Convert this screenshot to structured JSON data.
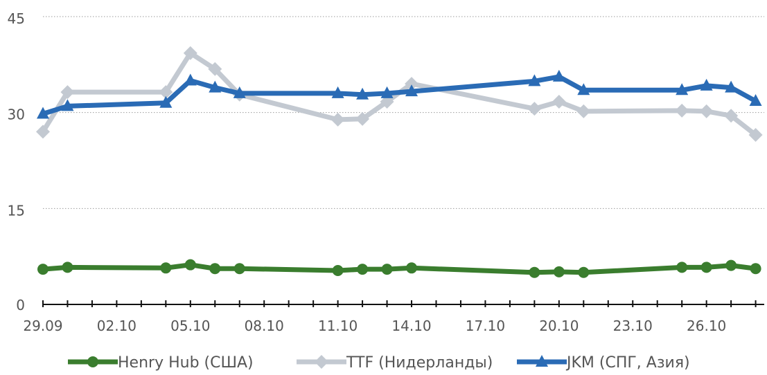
{
  "chart_data": {
    "type": "line",
    "title": "",
    "xlabel": "",
    "ylabel": "",
    "ylim": [
      0,
      45
    ],
    "yticks": [
      0,
      15,
      30,
      45
    ],
    "grid": "horizontal dotted",
    "legend_position": "bottom",
    "x_tick_labels": [
      "29.09",
      "02.10",
      "05.10",
      "08.10",
      "11.10",
      "14.10",
      "17.10",
      "20.10",
      "23.10",
      "26.10"
    ],
    "series": [
      {
        "name": "Henry Hub (США)",
        "color": "#3a7d2e",
        "marker": "circle",
        "x": [
          "29.09",
          "30.09",
          "04.10",
          "05.10",
          "06.10",
          "07.10",
          "11.10",
          "12.10",
          "13.10",
          "14.10",
          "19.10",
          "20.10",
          "21.10",
          "25.10",
          "26.10",
          "27.10",
          "28.10"
        ],
        "values": [
          5.5,
          5.8,
          5.7,
          6.2,
          5.6,
          5.6,
          5.3,
          5.5,
          5.5,
          5.7,
          5.0,
          5.1,
          5.0,
          5.8,
          5.8,
          6.1,
          5.6
        ]
      },
      {
        "name": "TTF (Нидерланды)",
        "color": "#c3c9d1",
        "marker": "diamond",
        "x": [
          "29.09",
          "30.09",
          "04.10",
          "05.10",
          "06.10",
          "07.10",
          "11.10",
          "12.10",
          "13.10",
          "14.10",
          "19.10",
          "20.10",
          "21.10",
          "25.10",
          "26.10",
          "27.10",
          "28.10"
        ],
        "values": [
          27.0,
          33.2,
          33.2,
          39.3,
          36.8,
          32.8,
          28.9,
          29.0,
          31.7,
          34.5,
          30.6,
          31.7,
          30.2,
          30.3,
          30.2,
          29.5,
          26.5
        ]
      },
      {
        "name": "JKM (СПГ, Азия)",
        "color": "#2a6bb5",
        "marker": "triangle",
        "x": [
          "29.09",
          "30.09",
          "04.10",
          "05.10",
          "06.10",
          "07.10",
          "11.10",
          "12.10",
          "13.10",
          "14.10",
          "19.10",
          "20.10",
          "21.10",
          "25.10",
          "26.10",
          "27.10",
          "28.10"
        ],
        "values": [
          29.8,
          31.0,
          31.5,
          35.0,
          33.9,
          33.0,
          33.0,
          32.8,
          33.0,
          33.3,
          34.9,
          35.6,
          33.5,
          33.5,
          34.2,
          33.9,
          31.8
        ]
      }
    ]
  }
}
